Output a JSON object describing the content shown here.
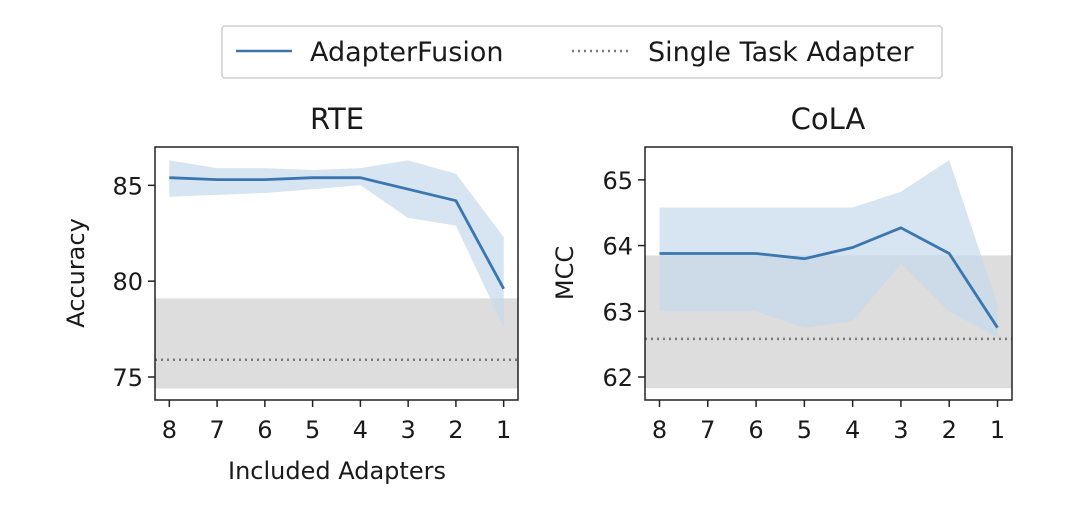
{
  "legend": {
    "placement": "top-center",
    "entries": [
      {
        "label": "AdapterFusion",
        "style": "solid",
        "color": "#3a76b0"
      },
      {
        "label": "Single Task Adapter",
        "style": "dotted",
        "color": "#7a7a7a"
      }
    ]
  },
  "colors": {
    "fusion_line": "#3a76b0",
    "fusion_band": "#c6d8eb",
    "single_line": "#7a7a7a",
    "single_band": "#d2d2d2"
  },
  "chart_data": [
    {
      "id": "rte",
      "type": "line",
      "title": "RTE",
      "xlabel": "Included Adapters",
      "ylabel": "Accuracy",
      "x": [
        "8",
        "7",
        "6",
        "5",
        "4",
        "3",
        "2",
        "1"
      ],
      "xlim": [
        -0.3,
        7.3
      ],
      "ylim": [
        73.8,
        87.0
      ],
      "yticks": [
        75,
        80,
        85
      ],
      "series": [
        {
          "name": "AdapterFusion",
          "values": [
            85.4,
            85.3,
            85.3,
            85.4,
            85.4,
            84.8,
            84.2,
            79.6
          ],
          "band_upper": [
            86.3,
            85.9,
            85.9,
            85.8,
            85.9,
            86.3,
            85.6,
            82.3
          ],
          "band_lower": [
            84.4,
            84.5,
            84.6,
            84.8,
            85.0,
            83.3,
            82.9,
            77.6
          ]
        },
        {
          "name": "Single Task Adapter",
          "value": 75.9,
          "band_upper": 79.1,
          "band_lower": 74.4
        }
      ]
    },
    {
      "id": "cola",
      "type": "line",
      "title": "CoLA",
      "xlabel": "",
      "ylabel": "MCC",
      "x": [
        "8",
        "7",
        "6",
        "5",
        "4",
        "3",
        "2",
        "1"
      ],
      "xlim": [
        -0.3,
        7.3
      ],
      "ylim": [
        61.65,
        65.5
      ],
      "yticks": [
        62,
        63,
        64,
        65
      ],
      "series": [
        {
          "name": "AdapterFusion",
          "values": [
            63.88,
            63.88,
            63.88,
            63.8,
            63.97,
            64.27,
            63.88,
            62.75
          ],
          "band_upper": [
            64.58,
            64.58,
            64.58,
            64.58,
            64.58,
            64.82,
            65.3,
            63.1
          ],
          "band_lower": [
            63.0,
            63.0,
            63.0,
            62.75,
            62.85,
            63.72,
            63.0,
            62.6
          ]
        },
        {
          "name": "Single Task Adapter",
          "value": 62.58,
          "band_upper": 63.85,
          "band_lower": 61.83
        }
      ]
    }
  ]
}
